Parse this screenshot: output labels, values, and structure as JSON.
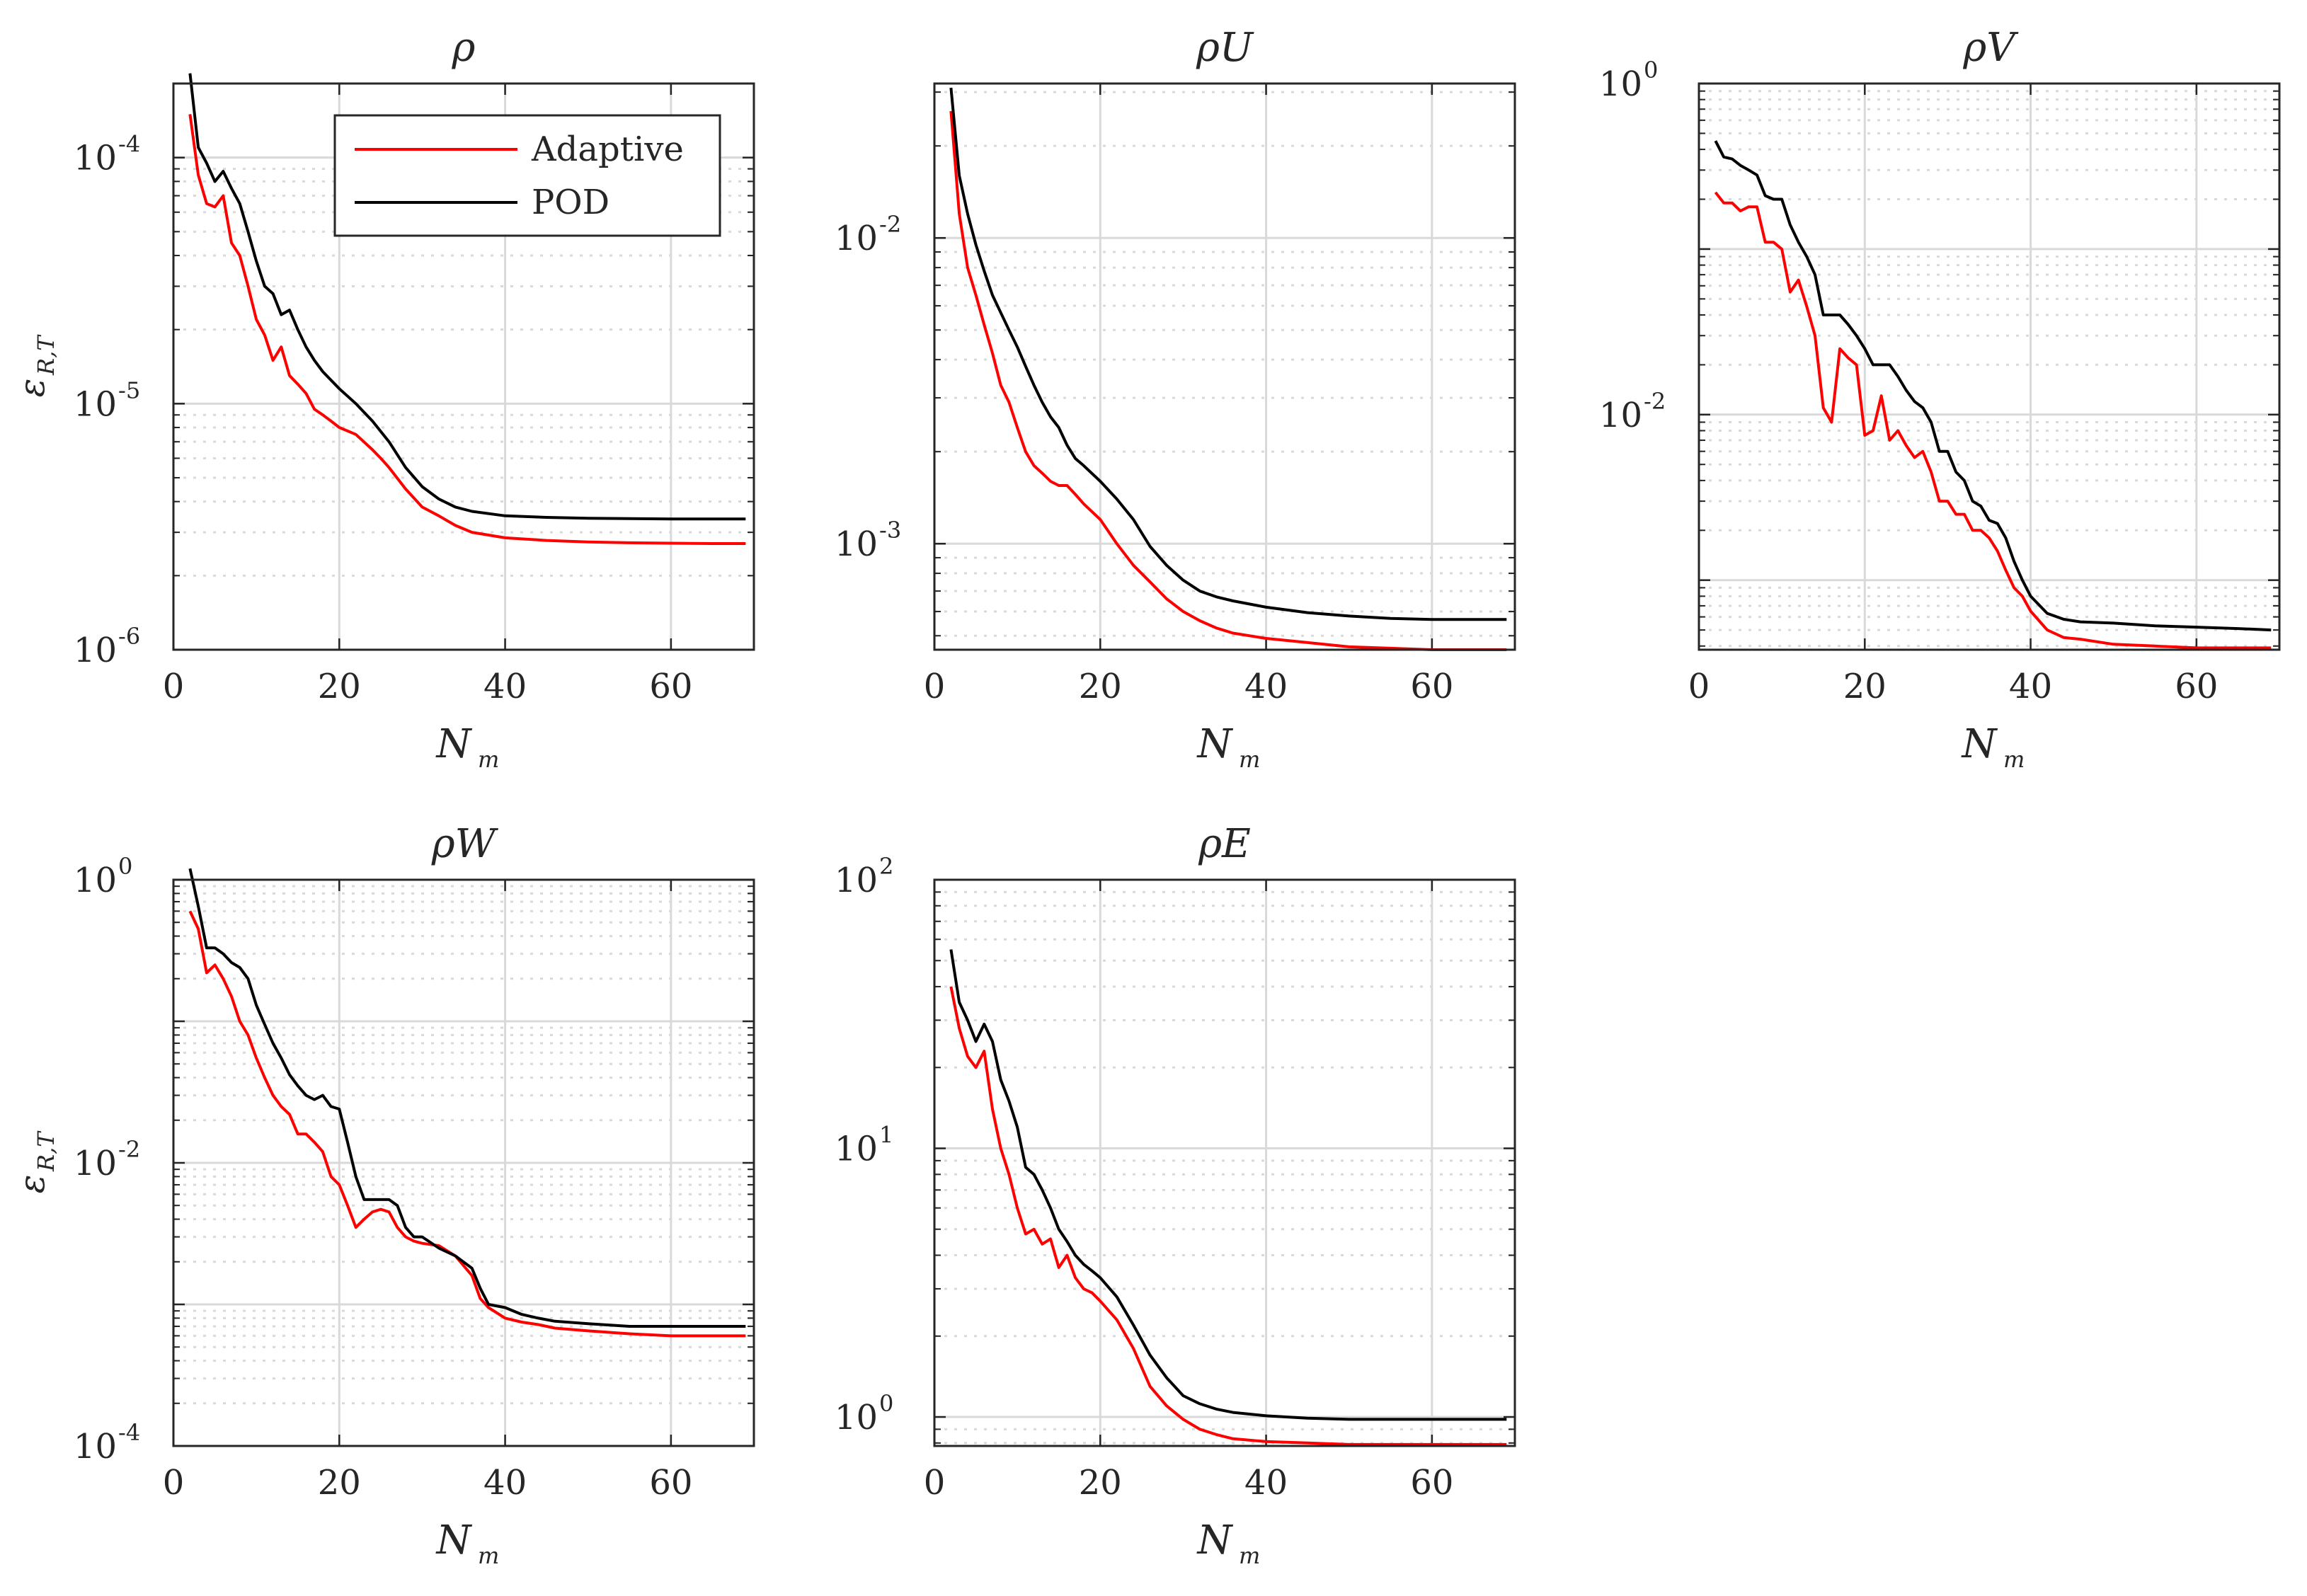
{
  "colors": {
    "adaptive": "#ff0000",
    "pod": "#000000",
    "grid": "#d9d9d9",
    "axis": "#262626"
  },
  "legend": [
    {
      "label": "Adaptive",
      "color": "#ff0000"
    },
    {
      "label": "POD",
      "color": "#000000"
    }
  ],
  "chart_data": [
    {
      "type": "line",
      "title": "ρ",
      "xlabel": "N",
      "xlabel_sub": "m",
      "ylabel": "ε",
      "ylabel_sub": "R,T",
      "yscale": "log",
      "xlim": [
        0,
        70
      ],
      "ylim": [
        1e-06,
        0.0002
      ],
      "xticks": [
        0,
        20,
        40,
        60
      ],
      "yticks": [
        {
          "base": "10",
          "exp": "-6",
          "value": 1e-06
        },
        {
          "base": "10",
          "exp": "-5",
          "value": 1e-05
        },
        {
          "base": "10",
          "exp": "-4",
          "value": 0.0001
        }
      ],
      "series": [
        {
          "name": "Adaptive",
          "x": [
            2,
            3,
            4,
            5,
            6,
            7,
            8,
            9,
            10,
            11,
            12,
            13,
            14,
            15,
            16,
            17,
            18,
            19,
            20,
            22,
            24,
            25,
            26,
            28,
            30,
            32,
            34,
            36,
            40,
            45,
            50,
            55,
            60,
            65,
            69
          ],
          "y": [
            0.00015,
            8.5e-05,
            6.5e-05,
            6.3e-05,
            7e-05,
            4.5e-05,
            4e-05,
            3e-05,
            2.2e-05,
            1.9e-05,
            1.5e-05,
            1.7e-05,
            1.3e-05,
            1.2e-05,
            1.1e-05,
            9.5e-06,
            9e-06,
            8.5e-06,
            8e-06,
            7.5e-06,
            6.5e-06,
            6e-06,
            5.5e-06,
            4.5e-06,
            3.8e-06,
            3.5e-06,
            3.2e-06,
            3e-06,
            2.85e-06,
            2.78e-06,
            2.74e-06,
            2.72e-06,
            2.71e-06,
            2.7e-06,
            2.7e-06
          ]
        },
        {
          "name": "POD",
          "x": [
            2,
            3,
            4,
            5,
            6,
            7,
            8,
            9,
            10,
            11,
            12,
            13,
            14,
            15,
            16,
            17,
            18,
            20,
            22,
            24,
            26,
            28,
            30,
            32,
            34,
            36,
            40,
            45,
            50,
            55,
            60,
            65,
            69
          ],
          "y": [
            0.00022,
            0.00011,
            9.5e-05,
            8e-05,
            8.8e-05,
            7.5e-05,
            6.5e-05,
            5e-05,
            3.8e-05,
            3e-05,
            2.8e-05,
            2.3e-05,
            2.4e-05,
            2e-05,
            1.7e-05,
            1.5e-05,
            1.35e-05,
            1.15e-05,
            1e-05,
            8.5e-06,
            7e-06,
            5.5e-06,
            4.6e-06,
            4.1e-06,
            3.8e-06,
            3.65e-06,
            3.5e-06,
            3.45e-06,
            3.42e-06,
            3.41e-06,
            3.4e-06,
            3.4e-06,
            3.4e-06
          ]
        }
      ]
    },
    {
      "type": "line",
      "title": "ρU",
      "xlabel": "N",
      "xlabel_sub": "m",
      "ylabel": "",
      "ylabel_sub": "",
      "yscale": "log",
      "xlim": [
        0,
        70
      ],
      "ylim": [
        0.00045,
        0.032
      ],
      "xticks": [
        0,
        20,
        40,
        60
      ],
      "yticks": [
        {
          "base": "10",
          "exp": "-3",
          "value": 0.001
        },
        {
          "base": "10",
          "exp": "-2",
          "value": 0.01
        }
      ],
      "series": [
        {
          "name": "Adaptive",
          "x": [
            2,
            3,
            4,
            5,
            6,
            7,
            8,
            9,
            10,
            11,
            12,
            13,
            14,
            15,
            16,
            17,
            18,
            20,
            22,
            24,
            26,
            28,
            30,
            32,
            34,
            36,
            40,
            45,
            50,
            55,
            60,
            65,
            69
          ],
          "y": [
            0.026,
            0.012,
            0.008,
            0.0065,
            0.0052,
            0.0042,
            0.0033,
            0.0029,
            0.0024,
            0.002,
            0.0018,
            0.0017,
            0.0016,
            0.00155,
            0.00155,
            0.00145,
            0.00135,
            0.0012,
            0.001,
            0.00085,
            0.00075,
            0.00066,
            0.0006,
            0.00056,
            0.00053,
            0.00051,
            0.00049,
            0.000475,
            0.00046,
            0.000455,
            0.00045,
            0.00045,
            0.00045
          ]
        },
        {
          "name": "POD",
          "x": [
            2,
            3,
            4,
            5,
            6,
            7,
            8,
            9,
            10,
            11,
            12,
            13,
            14,
            15,
            16,
            17,
            18,
            20,
            22,
            24,
            26,
            28,
            30,
            32,
            34,
            36,
            40,
            45,
            50,
            55,
            60,
            65,
            69
          ],
          "y": [
            0.031,
            0.016,
            0.012,
            0.0095,
            0.0078,
            0.0065,
            0.0057,
            0.005,
            0.0044,
            0.0038,
            0.0033,
            0.0029,
            0.0026,
            0.0024,
            0.0021,
            0.0019,
            0.0018,
            0.0016,
            0.0014,
            0.0012,
            0.00098,
            0.00085,
            0.00076,
            0.0007,
            0.00067,
            0.00065,
            0.00062,
            0.000595,
            0.00058,
            0.00057,
            0.000565,
            0.000565,
            0.000565
          ]
        }
      ]
    },
    {
      "type": "line",
      "title": "ρV",
      "xlabel": "N",
      "xlabel_sub": "m",
      "ylabel": "",
      "ylabel_sub": "",
      "yscale": "log",
      "xlim": [
        0,
        70
      ],
      "ylim": [
        0.00038,
        1.0
      ],
      "xticks": [
        0,
        20,
        40,
        60
      ],
      "yticks": [
        {
          "base": "10",
          "exp": "-2",
          "value": 0.01
        },
        {
          "base": "10",
          "exp": "0",
          "value": 1
        }
      ],
      "series": [
        {
          "name": "Adaptive",
          "x": [
            2,
            3,
            4,
            5,
            6,
            7,
            8,
            9,
            10,
            11,
            12,
            13,
            14,
            15,
            16,
            17,
            18,
            19,
            20,
            21,
            22,
            23,
            24,
            25,
            26,
            27,
            28,
            29,
            30,
            31,
            32,
            33,
            34,
            35,
            36,
            37,
            38,
            39,
            40,
            42,
            44,
            46,
            50,
            55,
            60,
            65,
            69
          ],
          "y": [
            0.22,
            0.19,
            0.19,
            0.17,
            0.18,
            0.18,
            0.11,
            0.11,
            0.1,
            0.055,
            0.065,
            0.045,
            0.03,
            0.011,
            0.009,
            0.025,
            0.022,
            0.02,
            0.0075,
            0.008,
            0.013,
            0.007,
            0.008,
            0.0065,
            0.0055,
            0.006,
            0.0045,
            0.003,
            0.003,
            0.0025,
            0.0025,
            0.002,
            0.002,
            0.0018,
            0.0015,
            0.00115,
            0.0009,
            0.0008,
            0.00065,
            0.0005,
            0.00045,
            0.00044,
            0.00041,
            0.0004,
            0.00039,
            0.00039,
            0.00039
          ]
        },
        {
          "name": "POD",
          "x": [
            2,
            3,
            4,
            5,
            6,
            7,
            8,
            9,
            10,
            11,
            12,
            13,
            14,
            15,
            16,
            17,
            18,
            19,
            20,
            21,
            22,
            23,
            24,
            25,
            26,
            27,
            28,
            29,
            30,
            31,
            32,
            33,
            34,
            35,
            36,
            37,
            38,
            39,
            40,
            42,
            44,
            46,
            50,
            55,
            60,
            65,
            69
          ],
          "y": [
            0.45,
            0.36,
            0.35,
            0.32,
            0.3,
            0.28,
            0.21,
            0.2,
            0.2,
            0.14,
            0.11,
            0.09,
            0.07,
            0.04,
            0.04,
            0.04,
            0.035,
            0.03,
            0.025,
            0.02,
            0.02,
            0.02,
            0.017,
            0.014,
            0.012,
            0.011,
            0.009,
            0.006,
            0.006,
            0.0045,
            0.004,
            0.003,
            0.0028,
            0.0023,
            0.0022,
            0.0018,
            0.0013,
            0.001,
            0.0008,
            0.00063,
            0.00058,
            0.00056,
            0.00055,
            0.00053,
            0.00052,
            0.00051,
            0.0005
          ]
        }
      ]
    },
    {
      "type": "line",
      "title": "ρW",
      "xlabel": "N",
      "xlabel_sub": "m",
      "ylabel": "ε",
      "ylabel_sub": "R,T",
      "yscale": "log",
      "xlim": [
        0,
        70
      ],
      "ylim": [
        0.0001,
        1.0
      ],
      "xticks": [
        0,
        20,
        40,
        60
      ],
      "yticks": [
        {
          "base": "10",
          "exp": "-4",
          "value": 0.0001
        },
        {
          "base": "10",
          "exp": "-2",
          "value": 0.01
        },
        {
          "base": "10",
          "exp": "0",
          "value": 1
        }
      ],
      "series": [
        {
          "name": "Adaptive",
          "x": [
            2,
            3,
            4,
            5,
            6,
            7,
            8,
            9,
            10,
            11,
            12,
            13,
            14,
            15,
            16,
            17,
            18,
            19,
            20,
            21,
            22,
            23,
            24,
            25,
            26,
            27,
            28,
            29,
            30,
            32,
            34,
            36,
            37,
            38,
            40,
            42,
            44,
            46,
            50,
            55,
            60,
            65,
            69
          ],
          "y": [
            0.6,
            0.45,
            0.22,
            0.25,
            0.2,
            0.15,
            0.1,
            0.08,
            0.055,
            0.04,
            0.03,
            0.025,
            0.022,
            0.016,
            0.016,
            0.014,
            0.012,
            0.008,
            0.007,
            0.005,
            0.0035,
            0.004,
            0.0045,
            0.0047,
            0.0045,
            0.0035,
            0.003,
            0.0028,
            0.0027,
            0.0026,
            0.0022,
            0.0016,
            0.0011,
            0.00095,
            0.0008,
            0.00075,
            0.00072,
            0.00068,
            0.00065,
            0.00062,
            0.0006,
            0.0006,
            0.0006
          ]
        },
        {
          "name": "POD",
          "x": [
            2,
            3,
            4,
            5,
            6,
            7,
            8,
            9,
            10,
            11,
            12,
            13,
            14,
            15,
            16,
            17,
            18,
            19,
            20,
            21,
            22,
            23,
            24,
            25,
            26,
            27,
            28,
            29,
            30,
            32,
            34,
            36,
            37,
            38,
            40,
            42,
            44,
            46,
            50,
            55,
            60,
            65,
            69
          ],
          "y": [
            1.2,
            0.65,
            0.33,
            0.33,
            0.3,
            0.26,
            0.24,
            0.2,
            0.13,
            0.095,
            0.07,
            0.055,
            0.042,
            0.035,
            0.03,
            0.028,
            0.03,
            0.025,
            0.024,
            0.014,
            0.008,
            0.0055,
            0.0055,
            0.0055,
            0.0055,
            0.005,
            0.0035,
            0.003,
            0.003,
            0.0025,
            0.0022,
            0.0018,
            0.0013,
            0.001,
            0.00095,
            0.00085,
            0.0008,
            0.00076,
            0.00073,
            0.0007,
            0.0007,
            0.0007,
            0.0007
          ]
        }
      ]
    },
    {
      "type": "line",
      "title": "ρE",
      "xlabel": "N",
      "xlabel_sub": "m",
      "ylabel": "",
      "ylabel_sub": "",
      "yscale": "log",
      "xlim": [
        0,
        70
      ],
      "ylim": [
        0.78,
        100
      ],
      "xticks": [
        0,
        20,
        40,
        60
      ],
      "yticks": [
        {
          "base": "10",
          "exp": "0",
          "value": 1
        },
        {
          "base": "10",
          "exp": "1",
          "value": 10
        },
        {
          "base": "10",
          "exp": "2",
          "value": 100
        }
      ],
      "series": [
        {
          "name": "Adaptive",
          "x": [
            2,
            3,
            4,
            5,
            6,
            7,
            8,
            9,
            10,
            11,
            12,
            13,
            14,
            15,
            16,
            17,
            18,
            19,
            20,
            22,
            24,
            26,
            28,
            30,
            32,
            34,
            36,
            40,
            45,
            50,
            55,
            60,
            65,
            69
          ],
          "y": [
            40,
            28,
            22,
            20,
            23,
            14,
            10,
            8,
            6,
            4.8,
            5,
            4.4,
            4.6,
            3.6,
            4,
            3.3,
            3,
            2.9,
            2.7,
            2.3,
            1.8,
            1.3,
            1.1,
            0.98,
            0.9,
            0.86,
            0.83,
            0.81,
            0.8,
            0.79,
            0.79,
            0.79,
            0.79,
            0.79
          ]
        },
        {
          "name": "POD",
          "x": [
            2,
            3,
            4,
            5,
            6,
            7,
            8,
            9,
            10,
            11,
            12,
            13,
            14,
            15,
            16,
            17,
            18,
            19,
            20,
            22,
            24,
            26,
            28,
            30,
            32,
            34,
            36,
            40,
            45,
            50,
            55,
            60,
            65,
            69
          ],
          "y": [
            55,
            35,
            30,
            25,
            29,
            25,
            18,
            15,
            12,
            8.5,
            8,
            7,
            6,
            5,
            4.5,
            4,
            3.7,
            3.5,
            3.3,
            2.8,
            2.2,
            1.7,
            1.4,
            1.2,
            1.12,
            1.07,
            1.04,
            1.01,
            0.99,
            0.98,
            0.98,
            0.98,
            0.98,
            0.98
          ]
        }
      ]
    }
  ]
}
